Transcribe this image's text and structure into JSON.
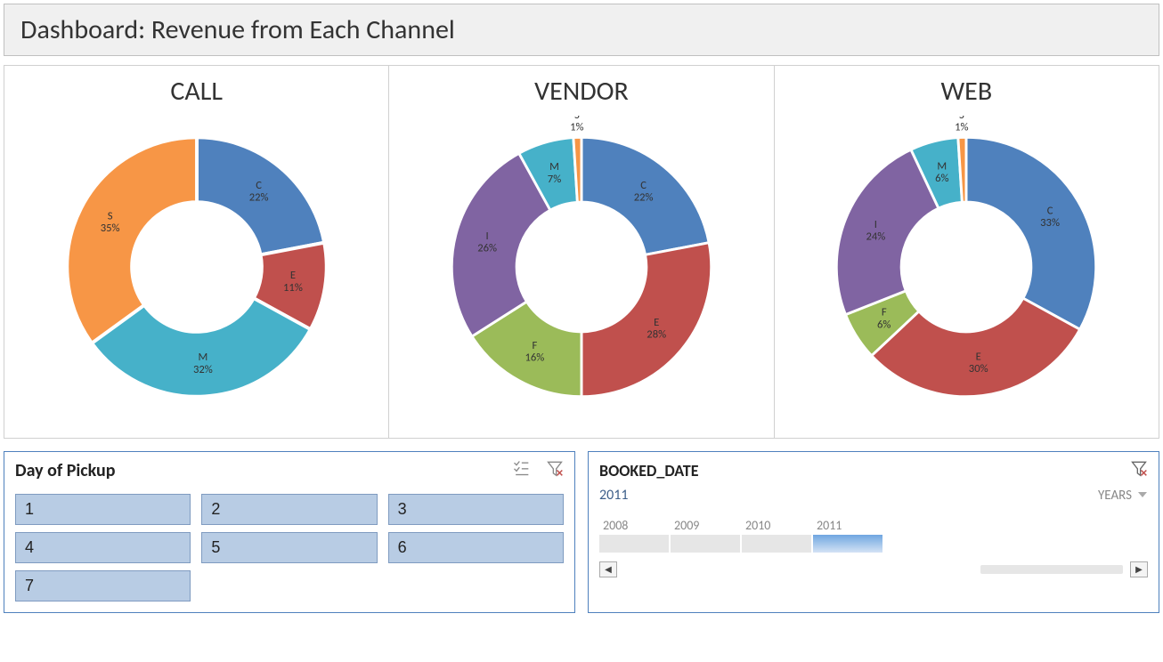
{
  "title": "Dashboard: Revenue from Each Channel",
  "title_fontsize": 30,
  "background_color": "#ffffff",
  "charts": [
    {
      "title": "CALL",
      "type": "donut",
      "inner_radius_ratio": 0.5,
      "slice_border_color": "#ffffff",
      "slice_border_width": 4,
      "label_fontsize": 13,
      "label_color": "#333333",
      "series": [
        {
          "label": "C",
          "valuePct": 22,
          "color": "#4f81bd"
        },
        {
          "label": "E",
          "valuePct": 11,
          "color": "#c0504d"
        },
        {
          "label": "M",
          "valuePct": 32,
          "color": "#46b1c9"
        },
        {
          "label": "S",
          "valuePct": 35,
          "color": "#f79646"
        }
      ]
    },
    {
      "title": "VENDOR",
      "type": "donut",
      "inner_radius_ratio": 0.5,
      "slice_border_color": "#ffffff",
      "slice_border_width": 3,
      "label_fontsize": 13,
      "label_color": "#333333",
      "series": [
        {
          "label": "C",
          "valuePct": 22,
          "color": "#4f81bd"
        },
        {
          "label": "E",
          "valuePct": 28,
          "color": "#c0504d"
        },
        {
          "label": "F",
          "valuePct": 16,
          "color": "#9bbb59"
        },
        {
          "label": "I",
          "valuePct": 26,
          "color": "#8064a2"
        },
        {
          "label": "M",
          "valuePct": 7,
          "color": "#46b1c9"
        },
        {
          "label": "S",
          "valuePct": 1,
          "color": "#f79646"
        }
      ]
    },
    {
      "title": "WEB",
      "type": "donut",
      "inner_radius_ratio": 0.5,
      "slice_border_color": "#ffffff",
      "slice_border_width": 3,
      "label_fontsize": 13,
      "label_color": "#333333",
      "series": [
        {
          "label": "C",
          "valuePct": 33,
          "color": "#4f81bd"
        },
        {
          "label": "E",
          "valuePct": 30,
          "color": "#c0504d"
        },
        {
          "label": "F",
          "valuePct": 6,
          "color": "#9bbb59"
        },
        {
          "label": "I",
          "valuePct": 24,
          "color": "#8064a2"
        },
        {
          "label": "M",
          "valuePct": 6,
          "color": "#46b1c9"
        },
        {
          "label": "S",
          "valuePct": 1,
          "color": "#f79646"
        }
      ]
    }
  ],
  "slicer": {
    "title": "Day of Pickup",
    "buttons": [
      "1",
      "2",
      "3",
      "4",
      "5",
      "6",
      "7"
    ],
    "button_bg": "#b8cce4",
    "button_border": "#7f9bc0",
    "border_color": "#4f81bd",
    "icons": {
      "multiselect_present": true,
      "clearfilter_present": true
    }
  },
  "timeline": {
    "title": "BOOKED_DATE",
    "selected_label": "2011",
    "level_label": "YEARS",
    "years": [
      "2008",
      "2009",
      "2010",
      "2011"
    ],
    "active_year": "2011",
    "inactive_block_color": "#e6e6e6",
    "active_block_gradient_top": "#6fa6e0",
    "active_block_gradient_bottom": "#d4e3f5",
    "border_color": "#4f81bd",
    "clearfilter_active": true
  }
}
